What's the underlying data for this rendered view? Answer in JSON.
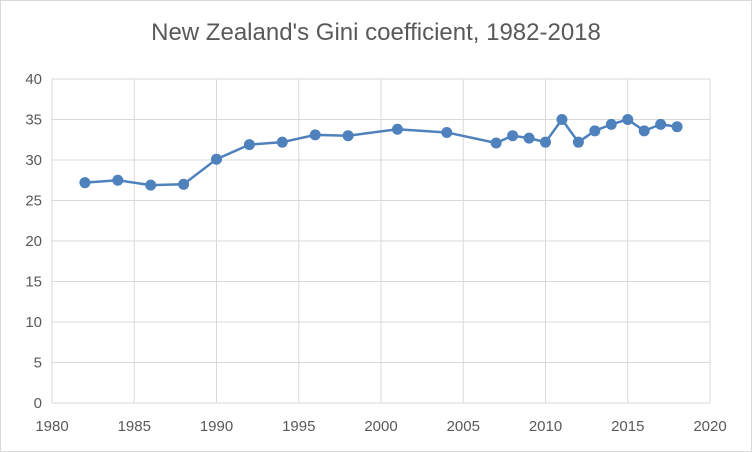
{
  "chart_data": {
    "type": "line",
    "title": "New Zealand's Gini coefficient, 1982-2018",
    "xlabel": "",
    "ylabel": "",
    "xlim": [
      1980,
      2020
    ],
    "ylim": [
      0,
      40
    ],
    "x_ticks": [
      1980,
      1985,
      1990,
      1995,
      2000,
      2005,
      2010,
      2015,
      2020
    ],
    "y_ticks": [
      0,
      5,
      10,
      15,
      20,
      25,
      30,
      35,
      40
    ],
    "grid": true,
    "legend": "none",
    "series_color": "#4f81bd",
    "grid_color": "#d9d9d9",
    "series": [
      {
        "x": [
          1982,
          1984,
          1986,
          1988,
          1990,
          1992,
          1994,
          1996,
          1998,
          2001,
          2004,
          2007,
          2008,
          2009,
          2010,
          2011,
          2012,
          2013,
          2014,
          2015,
          2016,
          2017,
          2018
        ],
        "values": [
          27.2,
          27.5,
          26.9,
          27.0,
          30.1,
          31.9,
          32.2,
          33.1,
          33.0,
          33.8,
          33.4,
          32.1,
          33.0,
          32.7,
          32.2,
          35.0,
          32.2,
          33.6,
          34.4,
          35.0,
          33.6,
          34.4,
          34.1
        ]
      }
    ]
  }
}
